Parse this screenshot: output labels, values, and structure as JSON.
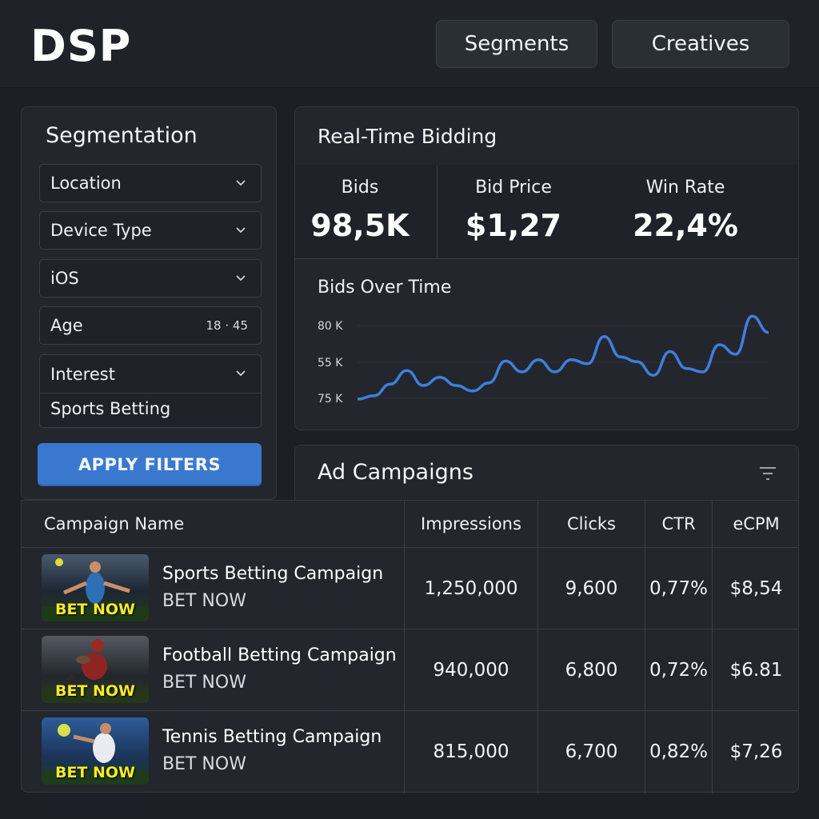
{
  "app": {
    "logo": "DSP"
  },
  "nav": {
    "segments": "Segments",
    "creatives": "Creatives"
  },
  "segmentation": {
    "title": "Segmentation",
    "location": "Location",
    "device_type": "Device Type",
    "os": "iOS",
    "age_label": "Age",
    "age_range": "18 · 45",
    "interest_label": "Interest",
    "interest_value": "Sports Betting",
    "apply": "APPLY FILTERS"
  },
  "rtb": {
    "title": "Real-Time Bidding",
    "metrics": [
      {
        "label": "Bids",
        "value": "98,5K"
      },
      {
        "label": "Bid Price",
        "value": "$1,27"
      },
      {
        "label": "Win Rate",
        "value": "22,4%"
      }
    ]
  },
  "chart_data": {
    "type": "line",
    "title": "Bids Over Time",
    "y_tick_labels": [
      "80 K",
      "55 K",
      "75 K"
    ],
    "values": [
      0.0,
      0.05,
      0.22,
      0.42,
      0.2,
      0.32,
      0.2,
      0.12,
      0.24,
      0.56,
      0.4,
      0.58,
      0.4,
      0.58,
      0.52,
      0.92,
      0.62,
      0.55,
      0.35,
      0.7,
      0.45,
      0.4,
      0.8,
      0.66,
      1.22,
      0.98
    ],
    "color": "#3f7fdc"
  },
  "campaigns": {
    "title": "Ad Campaigns",
    "columns": [
      "Campaign Name",
      "Impressions",
      "Clicks",
      "CTR",
      "eCPM"
    ],
    "rows": [
      {
        "name": "Sports Betting Campaign",
        "cta": "BET NOW",
        "badge": "BET NOW",
        "impressions": "1,250,000",
        "clicks": "9,600",
        "ctr": "0,77%",
        "ecpm": "$8,54"
      },
      {
        "name": "Football Betting Campaign",
        "cta": "BET NOW",
        "badge": "BET NOW",
        "impressions": "940,000",
        "clicks": "6,800",
        "ctr": "0,72%",
        "ecpm": "$6.81"
      },
      {
        "name": "Tennis Betting Campaign",
        "cta": "BET NOW",
        "badge": "BET NOW",
        "impressions": "815,000",
        "clicks": "6,700",
        "ctr": "0,82%",
        "ecpm": "$7,26"
      }
    ]
  },
  "colors": {
    "accent": "#3a78d0",
    "badge": "#f5ea2a",
    "background": "#1c1f25",
    "panel": "#23262d"
  },
  "icons": {
    "dropdown": "chevron-down-icon",
    "filter": "filter-icon"
  }
}
